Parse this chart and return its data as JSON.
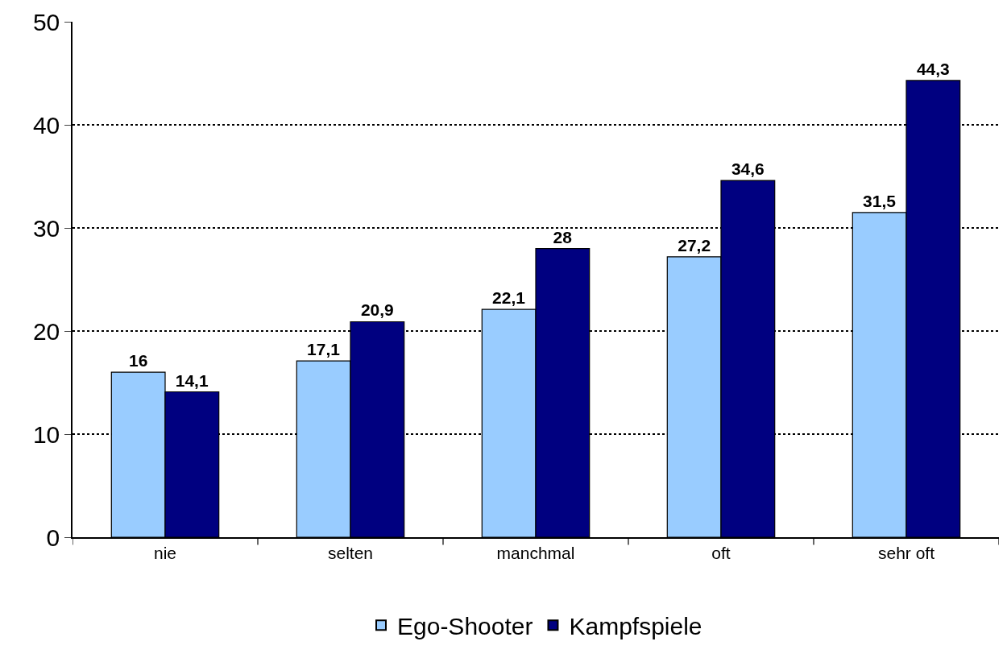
{
  "chart_data": {
    "type": "bar",
    "categories": [
      "nie",
      "selten",
      "manchmal",
      "oft",
      "sehr oft"
    ],
    "series": [
      {
        "name": "Ego-Shooter",
        "color": "#99ccff",
        "values": [
          16,
          17.1,
          22.1,
          27.2,
          31.5
        ],
        "value_labels": [
          "16",
          "17,1",
          "22,1",
          "27,2",
          "31,5"
        ]
      },
      {
        "name": "Kampfspiele",
        "color": "#000080",
        "values": [
          14.1,
          20.9,
          28,
          34.6,
          44.3
        ],
        "value_labels": [
          "14,1",
          "20,9",
          "28",
          "34,6",
          "44,3"
        ]
      }
    ],
    "ylim": [
      0,
      50
    ],
    "yticks": [
      0,
      10,
      20,
      30,
      40,
      50
    ],
    "grid": "y",
    "legend": "bottom"
  }
}
